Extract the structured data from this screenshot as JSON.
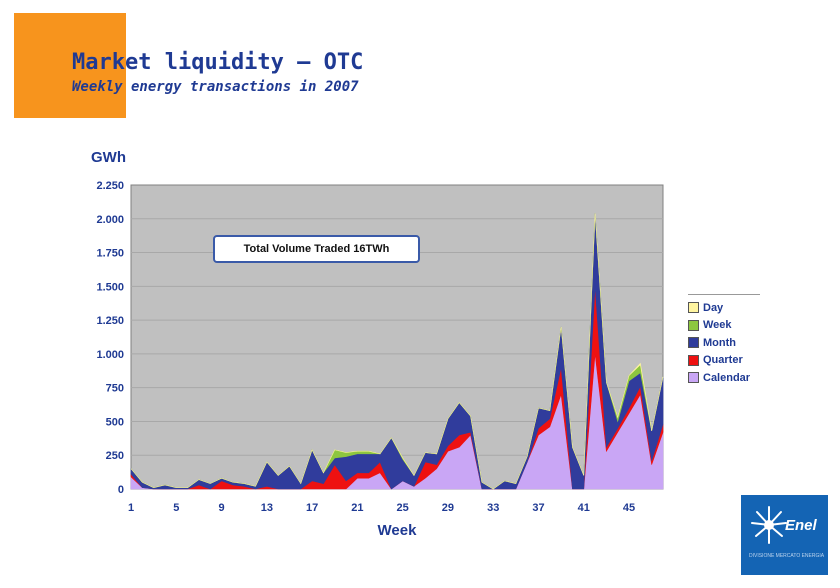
{
  "page": {
    "title": "Market liquidity – OTC",
    "subtitle": "Weekly energy transactions in 2007"
  },
  "colors": {
    "accent_block": "#f7941d",
    "title_text": "#1f3a93",
    "plot_bg": "#c0c0c0",
    "logo_bg": "#1464b4"
  },
  "logo": {
    "icon": "enel-sun-icon",
    "text": "Enel",
    "tagline": "DIVISIONE MERCATO ENERGIA"
  },
  "chart_data": {
    "type": "area",
    "stacked": true,
    "unit_label": "GWh",
    "xlabel": "Week",
    "ylabel": "",
    "annotation": "Total Volume Traded 16TWh",
    "x": [
      1,
      2,
      3,
      4,
      5,
      6,
      7,
      8,
      9,
      10,
      11,
      12,
      13,
      14,
      15,
      16,
      17,
      18,
      19,
      20,
      21,
      22,
      23,
      24,
      25,
      26,
      27,
      28,
      29,
      30,
      31,
      32,
      33,
      34,
      35,
      36,
      37,
      38,
      39,
      40,
      41,
      42,
      43,
      44,
      45,
      46,
      47,
      48
    ],
    "xticks": [
      1,
      5,
      9,
      13,
      17,
      21,
      25,
      29,
      33,
      37,
      41,
      45
    ],
    "ylim": [
      0,
      2250
    ],
    "yticks": [
      0,
      250,
      500,
      750,
      1000,
      1250,
      1500,
      1750,
      2000,
      2250
    ],
    "ytick_labels": [
      "0",
      "250",
      "500",
      "750",
      "1.000",
      "1.250",
      "1.500",
      "1.750",
      "2.000",
      "2.250"
    ],
    "grid": true,
    "legend_position": "right",
    "series": [
      {
        "name": "Calendar",
        "color": "#c9a6f5",
        "values": [
          90,
          10,
          0,
          0,
          0,
          0,
          0,
          0,
          0,
          0,
          0,
          0,
          0,
          0,
          0,
          0,
          0,
          0,
          0,
          0,
          80,
          80,
          120,
          0,
          60,
          20,
          80,
          150,
          280,
          310,
          400,
          0,
          0,
          0,
          0,
          200,
          400,
          460,
          700,
          0,
          0,
          1000,
          280,
          420,
          560,
          700,
          180,
          420
        ]
      },
      {
        "name": "Quarter",
        "color": "#ee1111",
        "values": [
          20,
          0,
          0,
          0,
          0,
          0,
          30,
          0,
          60,
          30,
          20,
          0,
          20,
          0,
          0,
          0,
          60,
          40,
          180,
          60,
          40,
          40,
          80,
          0,
          0,
          0,
          120,
          30,
          40,
          90,
          20,
          0,
          0,
          0,
          0,
          0,
          50,
          60,
          200,
          0,
          0,
          500,
          30,
          30,
          40,
          60,
          30,
          60
        ]
      },
      {
        "name": "Month",
        "color": "#303c9c",
        "values": [
          40,
          40,
          10,
          30,
          10,
          10,
          40,
          40,
          20,
          20,
          20,
          20,
          180,
          100,
          170,
          40,
          230,
          80,
          50,
          180,
          140,
          140,
          60,
          380,
          160,
          80,
          70,
          80,
          200,
          240,
          120,
          50,
          0,
          60,
          40,
          40,
          150,
          60,
          300,
          310,
          100,
          540,
          480,
          50,
          200,
          100,
          220,
          350
        ]
      },
      {
        "name": "Week",
        "color": "#8dc63f",
        "values": [
          0,
          0,
          0,
          0,
          0,
          0,
          0,
          0,
          0,
          0,
          0,
          0,
          0,
          0,
          0,
          0,
          0,
          0,
          60,
          30,
          20,
          20,
          0,
          0,
          10,
          0,
          0,
          0,
          0,
          0,
          0,
          0,
          0,
          0,
          0,
          0,
          0,
          0,
          0,
          0,
          0,
          0,
          0,
          30,
          40,
          60,
          0,
          0
        ]
      },
      {
        "name": "Day",
        "color": "#fff5a0",
        "values": [
          0,
          0,
          0,
          0,
          0,
          0,
          0,
          0,
          0,
          0,
          0,
          0,
          0,
          0,
          0,
          0,
          0,
          0,
          0,
          0,
          0,
          0,
          0,
          0,
          0,
          0,
          0,
          0,
          0,
          0,
          0,
          0,
          0,
          0,
          0,
          0,
          0,
          0,
          0,
          0,
          0,
          0,
          0,
          0,
          0,
          10,
          0,
          0
        ]
      }
    ],
    "legend_order": [
      "Day",
      "Week",
      "Month",
      "Quarter",
      "Calendar"
    ]
  }
}
